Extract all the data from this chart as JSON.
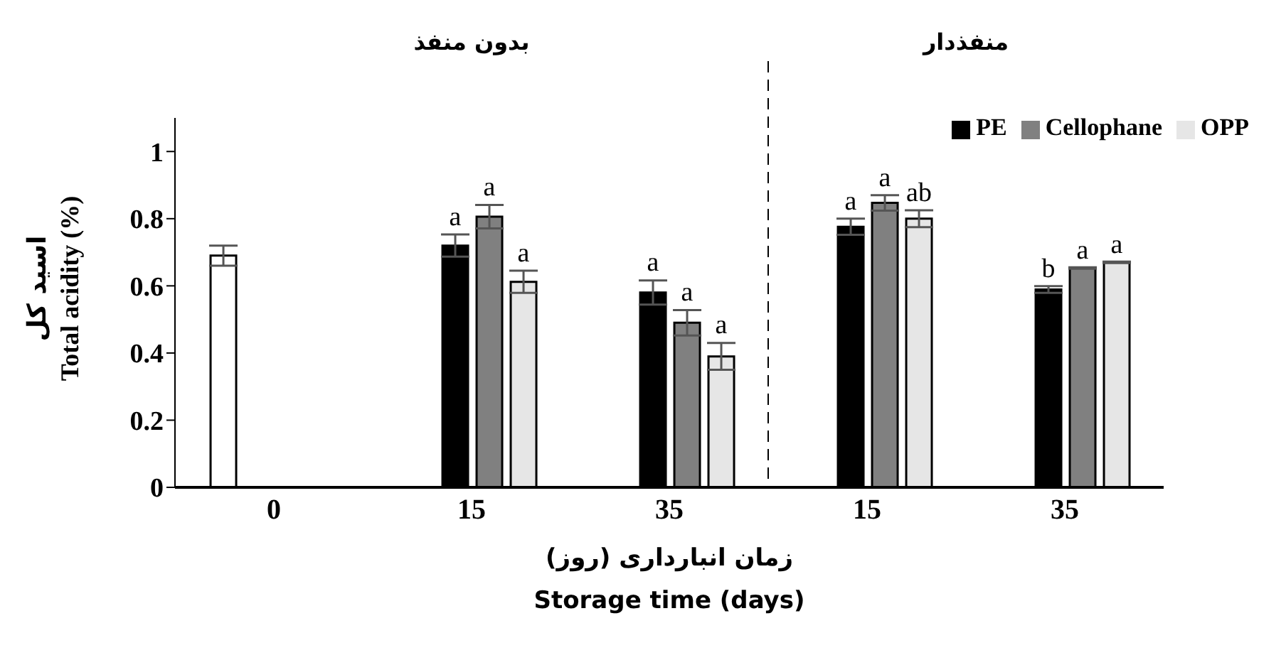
{
  "chart_data": {
    "type": "bar",
    "categories": [
      "0",
      "15",
      "35",
      "15",
      "35"
    ],
    "series": [
      {
        "color": "#ffffff",
        "values": [
          0.69,
          null,
          null,
          null,
          null
        ],
        "errors": [
          0.03,
          null,
          null,
          null,
          null
        ]
      },
      {
        "name": "PE",
        "color": "#000000",
        "values": [
          null,
          0.72,
          0.58,
          0.776,
          0.589
        ],
        "errors": [
          null,
          0.033,
          0.036,
          0.024,
          0.01
        ],
        "value_labels": [
          null,
          "a",
          "a",
          "a",
          "b"
        ]
      },
      {
        "name": "Cellophane",
        "color": "#808080",
        "values": [
          null,
          0.806,
          0.49,
          0.847,
          0.653
        ],
        "errors": [
          null,
          0.035,
          0.038,
          0.023,
          0.002
        ],
        "value_labels": [
          null,
          "a",
          "a",
          "a",
          "a"
        ]
      },
      {
        "name": "OPP",
        "color": "#e6e6e6",
        "values": [
          null,
          0.612,
          0.39,
          0.8,
          0.67
        ],
        "errors": [
          null,
          0.033,
          0.04,
          0.025,
          0.002
        ],
        "value_labels": [
          null,
          "a",
          "a",
          "ab",
          "a"
        ]
      }
    ],
    "ylim": [
      0,
      1.1
    ],
    "yticks": [
      0,
      0.2,
      0.4,
      0.6,
      0.8,
      1
    ],
    "ylabel": "اسید کل\nTotal acidity (%)",
    "xlabel": "زمان انبارداری (روز)\nStorage time (days)",
    "annotations": [
      "بدون منفذ",
      "منفذدار"
    ],
    "legend": "top right",
    "grid": false
  }
}
